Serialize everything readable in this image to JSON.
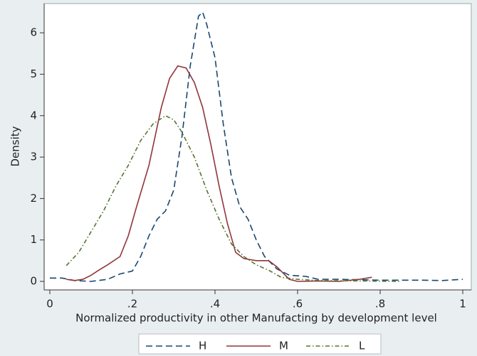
{
  "chart_data": {
    "type": "line",
    "ylabel": "Density",
    "xlabel": "Normalized productivity in other Manufacting by development level",
    "xlim": [
      0,
      1
    ],
    "xticks": [
      0,
      {
        "value": 0.2,
        "label": ".2"
      },
      {
        "value": 0.4,
        "label": ".4"
      },
      {
        "value": 0.6,
        "label": ".6"
      },
      {
        "value": 0.8,
        "label": ".8"
      },
      1
    ],
    "ylim": [
      0,
      6.5
    ],
    "yticks": [
      0,
      1,
      2,
      3,
      4,
      5,
      6
    ],
    "grid": false,
    "legend": "bottom",
    "series": [
      {
        "name": "H",
        "color": "#1a476f",
        "style": "dashed",
        "x": [
          0,
          0.03,
          0.06,
          0.1,
          0.14,
          0.17,
          0.2,
          0.22,
          0.24,
          0.26,
          0.28,
          0.3,
          0.32,
          0.34,
          0.36,
          0.37,
          0.38,
          0.4,
          0.42,
          0.44,
          0.46,
          0.48,
          0.5,
          0.52,
          0.55,
          0.58,
          0.62,
          0.65,
          0.7,
          0.8,
          0.9,
          0.95,
          1.0
        ],
        "values": [
          0.08,
          0.08,
          0.02,
          0.0,
          0.05,
          0.18,
          0.25,
          0.6,
          1.1,
          1.5,
          1.7,
          2.2,
          3.5,
          5.2,
          6.4,
          6.5,
          6.2,
          5.4,
          3.8,
          2.5,
          1.8,
          1.5,
          1.0,
          0.6,
          0.3,
          0.15,
          0.12,
          0.05,
          0.05,
          0.03,
          0.03,
          0.02,
          0.05
        ]
      },
      {
        "name": "M",
        "color": "#90353b",
        "style": "solid",
        "x": [
          0.04,
          0.06,
          0.08,
          0.1,
          0.12,
          0.14,
          0.17,
          0.19,
          0.21,
          0.24,
          0.27,
          0.29,
          0.31,
          0.33,
          0.35,
          0.37,
          0.39,
          0.41,
          0.43,
          0.45,
          0.47,
          0.5,
          0.53,
          0.55,
          0.58,
          0.6,
          0.65,
          0.7,
          0.75,
          0.78
        ],
        "values": [
          0.05,
          0.02,
          0.05,
          0.15,
          0.28,
          0.4,
          0.6,
          1.1,
          1.8,
          2.8,
          4.2,
          4.9,
          5.2,
          5.15,
          4.8,
          4.2,
          3.3,
          2.3,
          1.4,
          0.7,
          0.55,
          0.5,
          0.5,
          0.35,
          0.05,
          0.0,
          0.01,
          0.0,
          0.05,
          0.1
        ]
      },
      {
        "name": "L",
        "color": "#55752f",
        "style": "dashdot",
        "x": [
          0.04,
          0.07,
          0.1,
          0.13,
          0.16,
          0.19,
          0.22,
          0.25,
          0.28,
          0.3,
          0.32,
          0.35,
          0.38,
          0.41,
          0.44,
          0.47,
          0.5,
          0.53,
          0.56,
          0.6,
          0.65,
          0.75,
          0.85
        ],
        "values": [
          0.38,
          0.7,
          1.2,
          1.7,
          2.3,
          2.8,
          3.4,
          3.8,
          4.0,
          3.9,
          3.6,
          3.0,
          2.2,
          1.5,
          0.9,
          0.6,
          0.4,
          0.27,
          0.1,
          0.05,
          0.02,
          0.01,
          0.0
        ]
      }
    ]
  }
}
